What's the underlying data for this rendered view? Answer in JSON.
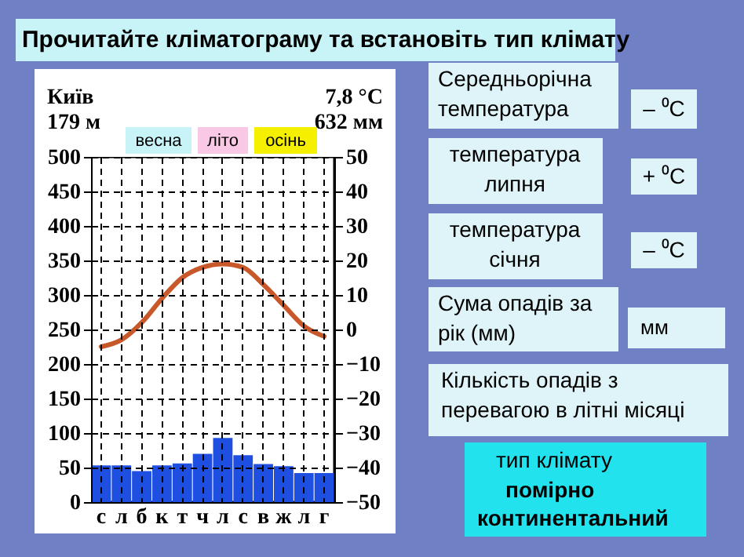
{
  "chart_data": {
    "type": "bar",
    "title": "Прочитайте кліматограму та встановіть тип клімату",
    "categories": [
      "с",
      "л",
      "б",
      "к",
      "т",
      "ч",
      "л",
      "с",
      "в",
      "ж",
      "л",
      "г"
    ],
    "series": [
      {
        "color": "#1f4fe0",
        "values": [
          53,
          53,
          45,
          53,
          56,
          70,
          93,
          68,
          55,
          52,
          42,
          42
        ]
      },
      {
        "type": "line",
        "axis": "y2",
        "color": "#c8582a",
        "values": [
          -5,
          -3,
          2,
          9,
          15,
          18,
          19,
          18,
          13,
          7,
          1,
          -2
        ]
      }
    ],
    "ylim": [
      0,
      500
    ],
    "yticks": [
      0,
      50,
      100,
      150,
      200,
      250,
      300,
      350,
      400,
      450,
      500
    ],
    "y2lim": [
      -50,
      50
    ],
    "y2ticks": [
      -50,
      -40,
      -30,
      -20,
      -10,
      0,
      10,
      20,
      30,
      40,
      50
    ],
    "grid": true,
    "annotations": [
      "Київ",
      "179 м",
      "7,8 °C",
      "632 мм",
      "весна",
      "літо",
      "осінь",
      "Середньорічна\nтемпература",
      "– ⁰C",
      "температура\nлипня",
      "+ ⁰C",
      "температура\nсічня",
      "– ⁰C",
      "Сума опадів за\nрік (мм)",
      "мм",
      "Кількість опадів з\nперевагою в літні місяці",
      "тип клімату",
      "помірно",
      "континентальний"
    ]
  }
}
